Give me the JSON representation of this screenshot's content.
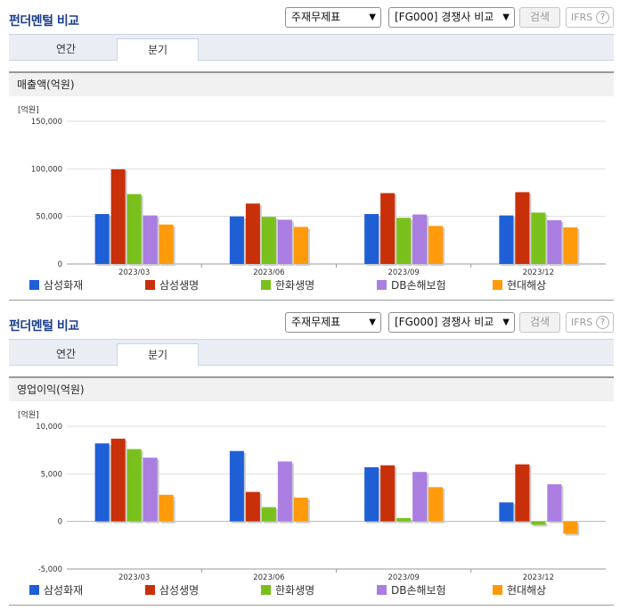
{
  "sections": [
    {
      "title": "펀더멘털 비교",
      "select_statement": "주재무제표",
      "select_compare": "[FG000] 경쟁사 비교",
      "search_label": "검색",
      "ifrs_label": "IFRS",
      "help_glyph": "?",
      "tabs": [
        "연간",
        "분기"
      ],
      "active_tab": "분기",
      "panel_title": "매출액(억원)"
    },
    {
      "title": "펀더멘털 비교",
      "select_statement": "주재무제표",
      "select_compare": "[FG000] 경쟁사 비교",
      "search_label": "검색",
      "ifrs_label": "IFRS",
      "help_glyph": "?",
      "tabs": [
        "연간",
        "분기"
      ],
      "active_tab": "분기",
      "panel_title": "영업이익(억원)"
    }
  ],
  "chart_data": [
    {
      "type": "bar",
      "unit_label": "[억원]",
      "categories": [
        "2023/03",
        "2023/06",
        "2023/09",
        "2023/12"
      ],
      "ylim": [
        0,
        150000
      ],
      "yticks": [
        0,
        50000,
        100000,
        150000
      ],
      "ytick_labels": [
        "0",
        "50,000",
        "100,000",
        "150,000"
      ],
      "grid": true,
      "legend_position": "bottom",
      "series": [
        {
          "name": "삼성화재",
          "color": "#1f5fd6",
          "values": [
            52500,
            50000,
            52500,
            51000
          ]
        },
        {
          "name": "삼성생명",
          "color": "#c8300a",
          "values": [
            99500,
            63500,
            74500,
            75500
          ]
        },
        {
          "name": "한화생명",
          "color": "#7ac01c",
          "values": [
            73500,
            49500,
            48500,
            54000
          ]
        },
        {
          "name": "DB손해보험",
          "color": "#a97ee0",
          "values": [
            51000,
            46500,
            52000,
            46000
          ]
        },
        {
          "name": "현대해상",
          "color": "#ff9a0a",
          "values": [
            41500,
            39000,
            40000,
            38500
          ]
        }
      ]
    },
    {
      "type": "bar",
      "unit_label": "[억원]",
      "categories": [
        "2023/03",
        "2023/06",
        "2023/09",
        "2023/12"
      ],
      "ylim": [
        -5000,
        10000
      ],
      "yticks": [
        -5000,
        0,
        5000,
        10000
      ],
      "ytick_labels": [
        "-5,000",
        "0",
        "5,000",
        "10,000"
      ],
      "grid": true,
      "legend_position": "bottom",
      "series": [
        {
          "name": "삼성화재",
          "color": "#1f5fd6",
          "values": [
            8200,
            7400,
            5700,
            2000
          ]
        },
        {
          "name": "삼성생명",
          "color": "#c8300a",
          "values": [
            8700,
            3100,
            5900,
            6000
          ]
        },
        {
          "name": "한화생명",
          "color": "#7ac01c",
          "values": [
            7600,
            1500,
            350,
            -350
          ]
        },
        {
          "name": "DB손해보험",
          "color": "#a97ee0",
          "values": [
            6700,
            6300,
            5200,
            3900
          ]
        },
        {
          "name": "현대해상",
          "color": "#ff9a0a",
          "values": [
            2800,
            2500,
            3600,
            -1300
          ]
        }
      ]
    }
  ]
}
